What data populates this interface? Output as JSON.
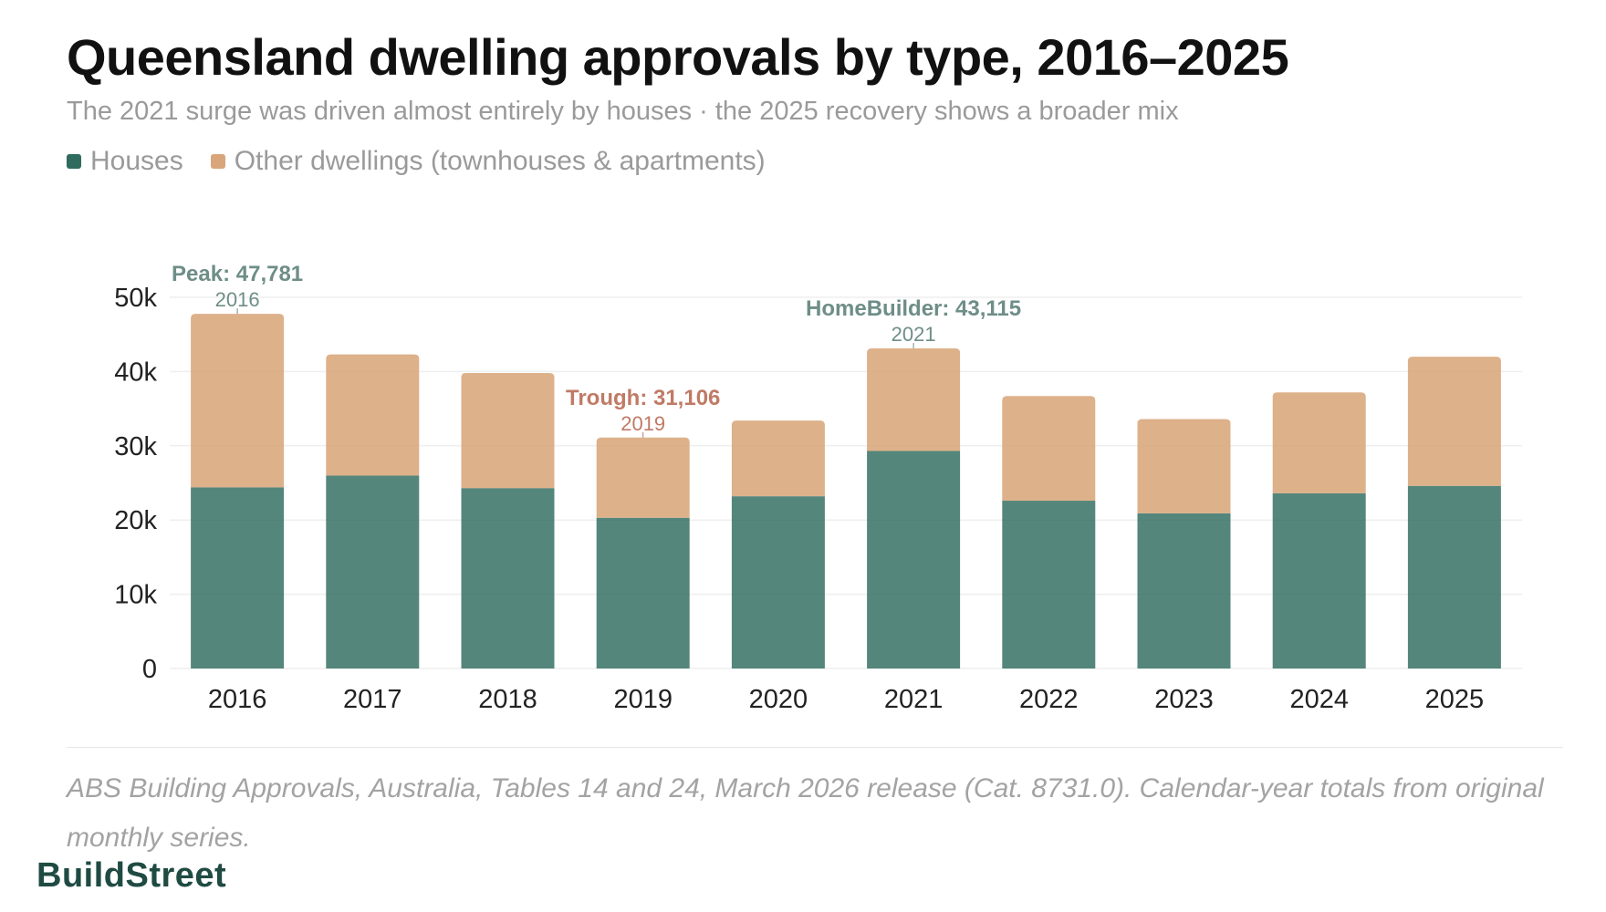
{
  "header": {
    "title": "Queensland dwelling approvals by type, 2016–2025",
    "subtitle": "The 2021 surge was driven almost entirely by houses · the 2025 recovery shows a broader mix"
  },
  "legend": [
    {
      "label": "Houses",
      "color": "#2f6b5e"
    },
    {
      "label": "Other dwellings (townhouses & apartments)",
      "color": "#d8a67a"
    }
  ],
  "chart_data": {
    "type": "bar",
    "stacked": true,
    "categories": [
      "2016",
      "2017",
      "2018",
      "2019",
      "2020",
      "2021",
      "2022",
      "2023",
      "2024",
      "2025"
    ],
    "series": [
      {
        "name": "Houses",
        "color": "#2f6b5e",
        "values": [
          24400,
          26000,
          24300,
          20300,
          23200,
          29300,
          22600,
          20900,
          23600,
          24600
        ]
      },
      {
        "name": "Other dwellings (townhouses & apartments)",
        "color": "#d8a67a",
        "values": [
          23381,
          16300,
          15500,
          10806,
          10200,
          13815,
          14100,
          12700,
          13600,
          17400
        ]
      }
    ],
    "ylim": [
      0,
      50000
    ],
    "yticks": [
      0,
      10000,
      20000,
      30000,
      40000,
      50000
    ],
    "ytick_labels": [
      "0",
      "10k",
      "20k",
      "30k",
      "40k",
      "50k"
    ],
    "grid": true,
    "legend_position": "top-left",
    "annotations": [
      {
        "category": "2016",
        "label": "Peak: 47,781",
        "sublabel": "2016",
        "value": 47781,
        "color": "#6e8e87"
      },
      {
        "category": "2019",
        "label": "Trough: 31,106",
        "sublabel": "2019",
        "value": 31106,
        "color": "#c07a66"
      },
      {
        "category": "2021",
        "label": "HomeBuilder: 43,115",
        "sublabel": "2021",
        "value": 43115,
        "color": "#6e8e87"
      }
    ]
  },
  "footer": {
    "source": "ABS Building Approvals, Australia, Tables 14 and 24, March 2026 release (Cat. 8731.0). Calendar-year totals from original monthly series.",
    "brand": "BuildStreet"
  }
}
